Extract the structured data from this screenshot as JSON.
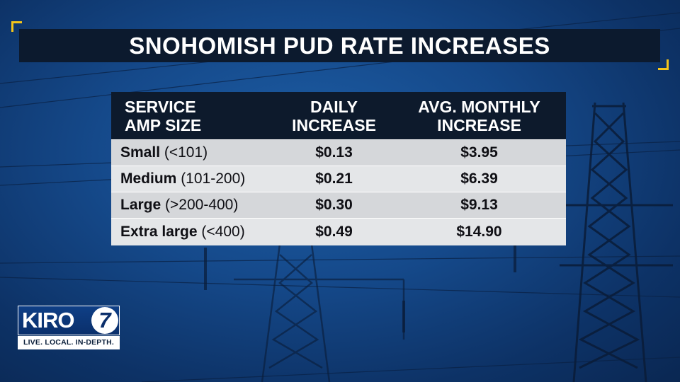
{
  "title": "SNOHOMISH PUD RATE INCREASES",
  "table": {
    "headers": [
      [
        "SERVICE",
        "AMP SIZE"
      ],
      [
        "DAILY",
        "INCREASE"
      ],
      [
        "AVG. MONTHLY",
        "INCREASE"
      ]
    ],
    "rows": [
      {
        "name": "Small",
        "range": "(<101)",
        "daily": "$0.13",
        "monthly": "$3.95"
      },
      {
        "name": "Medium",
        "range": "(101-200)",
        "daily": "$0.21",
        "monthly": "$6.39"
      },
      {
        "name": "Large",
        "range": "(>200-400)",
        "daily": "$0.30",
        "monthly": "$9.13"
      },
      {
        "name": "Extra large",
        "range": "(<400)",
        "daily": "$0.49",
        "monthly": "$14.90"
      }
    ]
  },
  "logo": {
    "brand": "KIRO",
    "number": "7",
    "tagline": "LIVE. LOCAL. IN-DEPTH."
  },
  "colors": {
    "background": "#15498a",
    "title_bar": "#0c1a2e",
    "accent_corners": "#f4c51a",
    "table_header": "#0d1a2c",
    "row_light": "#e4e6e8",
    "row_dark": "#d5d7da"
  }
}
